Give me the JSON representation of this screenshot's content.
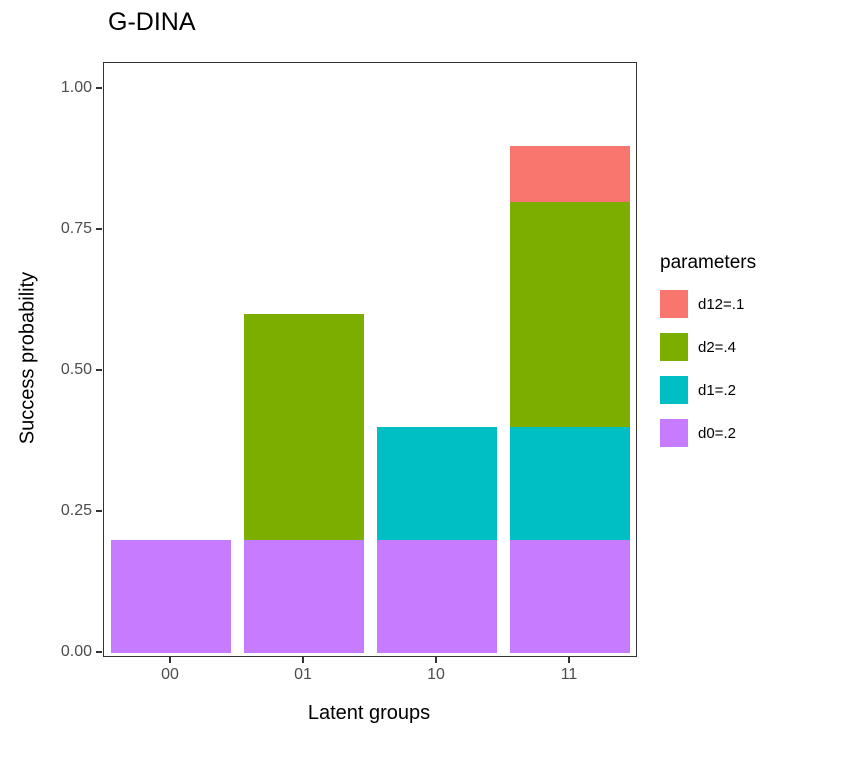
{
  "title": "G-DINA",
  "chart_data": {
    "type": "bar",
    "stacked": true,
    "title": "G-DINA",
    "xlabel": "Latent groups",
    "ylabel": "Success probability",
    "categories": [
      "00",
      "01",
      "10",
      "11"
    ],
    "series": [
      {
        "name": "d12=.1",
        "color": "#F8766D",
        "values": [
          0,
          0,
          0,
          0.1
        ]
      },
      {
        "name": "d2=.4",
        "color": "#7CAE00",
        "values": [
          0,
          0.4,
          0,
          0.4
        ]
      },
      {
        "name": "d1=.2",
        "color": "#00BFC4",
        "values": [
          0,
          0,
          0.2,
          0.2
        ]
      },
      {
        "name": "d0=.2",
        "color": "#C77CFF",
        "values": [
          0.2,
          0.2,
          0.2,
          0.2
        ]
      }
    ],
    "totals": [
      0.2,
      0.6,
      0.4,
      0.9
    ],
    "y_ticks": [
      "0.00",
      "0.25",
      "0.50",
      "0.75",
      "1.00"
    ],
    "ylim": [
      0,
      1
    ],
    "grid": false,
    "legend_title": "parameters",
    "legend_position": "right",
    "panel_border_color": "#333333",
    "tick_label_color": "#4d4d4d"
  }
}
